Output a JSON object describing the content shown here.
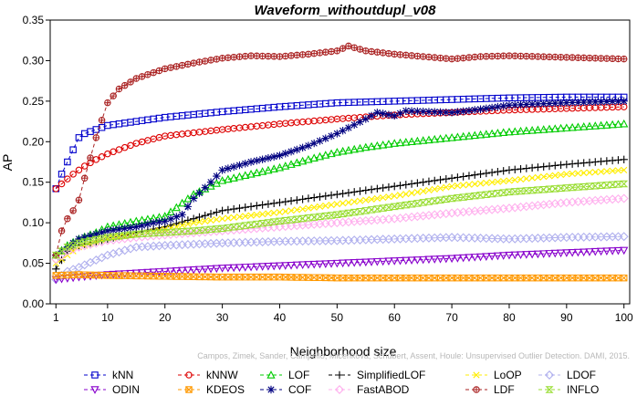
{
  "chart_data": {
    "type": "line",
    "title": "Waveform_withoutdupl_v08",
    "xlabel": "Neighborhood size",
    "ylabel": "AP",
    "xlim": [
      0,
      101
    ],
    "ylim": [
      0,
      0.35
    ],
    "xticks": [
      1,
      10,
      20,
      30,
      40,
      50,
      60,
      70,
      80,
      90,
      100
    ],
    "yticks": [
      0,
      0.05,
      0.1,
      0.15,
      0.2,
      0.25,
      0.3,
      0.35
    ],
    "ytick_labels": [
      "0.00",
      "0.05",
      "0.10",
      "0.15",
      "0.20",
      "0.25",
      "0.30",
      "0.35"
    ],
    "grid": false,
    "legend_position": "bottom",
    "watermark": "Campos, Zimek, Sander, Campello, Micenkova, Schubert, Assent, Houle: Unsupervised Outlier Detection. DAMI, 2015.",
    "series": [
      {
        "name": "kNN",
        "color": "#0000cc",
        "marker": "square",
        "points": [
          [
            1,
            0.142
          ],
          [
            2,
            0.16
          ],
          [
            3,
            0.175
          ],
          [
            4,
            0.19
          ],
          [
            5,
            0.205
          ],
          [
            6,
            0.21
          ],
          [
            8,
            0.215
          ],
          [
            10,
            0.22
          ],
          [
            15,
            0.225
          ],
          [
            20,
            0.23
          ],
          [
            30,
            0.237
          ],
          [
            40,
            0.243
          ],
          [
            50,
            0.248
          ],
          [
            60,
            0.25
          ],
          [
            70,
            0.252
          ],
          [
            80,
            0.254
          ],
          [
            90,
            0.255
          ],
          [
            100,
            0.255
          ]
        ]
      },
      {
        "name": "kNNW",
        "color": "#dd0000",
        "marker": "circle",
        "points": [
          [
            1,
            0.142
          ],
          [
            2,
            0.148
          ],
          [
            4,
            0.16
          ],
          [
            6,
            0.17
          ],
          [
            8,
            0.178
          ],
          [
            10,
            0.185
          ],
          [
            15,
            0.198
          ],
          [
            20,
            0.207
          ],
          [
            30,
            0.215
          ],
          [
            40,
            0.222
          ],
          [
            50,
            0.228
          ],
          [
            60,
            0.233
          ],
          [
            70,
            0.236
          ],
          [
            80,
            0.239
          ],
          [
            90,
            0.241
          ],
          [
            100,
            0.243
          ]
        ]
      },
      {
        "name": "LOF",
        "color": "#00cc00",
        "marker": "triangle-up",
        "points": [
          [
            1,
            0.06
          ],
          [
            3,
            0.072
          ],
          [
            5,
            0.08
          ],
          [
            8,
            0.088
          ],
          [
            10,
            0.095
          ],
          [
            15,
            0.102
          ],
          [
            20,
            0.108
          ],
          [
            25,
            0.135
          ],
          [
            30,
            0.152
          ],
          [
            35,
            0.16
          ],
          [
            40,
            0.168
          ],
          [
            45,
            0.178
          ],
          [
            50,
            0.187
          ],
          [
            55,
            0.193
          ],
          [
            60,
            0.198
          ],
          [
            70,
            0.205
          ],
          [
            80,
            0.212
          ],
          [
            90,
            0.217
          ],
          [
            100,
            0.222
          ]
        ]
      },
      {
        "name": "SimplifiedLOF",
        "color": "#000000",
        "marker": "plus",
        "points": [
          [
            1,
            0.043
          ],
          [
            3,
            0.065
          ],
          [
            5,
            0.072
          ],
          [
            10,
            0.08
          ],
          [
            15,
            0.088
          ],
          [
            20,
            0.095
          ],
          [
            25,
            0.105
          ],
          [
            30,
            0.115
          ],
          [
            35,
            0.12
          ],
          [
            40,
            0.125
          ],
          [
            50,
            0.135
          ],
          [
            60,
            0.145
          ],
          [
            70,
            0.155
          ],
          [
            80,
            0.165
          ],
          [
            90,
            0.172
          ],
          [
            100,
            0.178
          ]
        ]
      },
      {
        "name": "LoOP",
        "color": "#ffee00",
        "marker": "x",
        "points": [
          [
            1,
            0.05
          ],
          [
            3,
            0.06
          ],
          [
            5,
            0.07
          ],
          [
            10,
            0.08
          ],
          [
            15,
            0.085
          ],
          [
            20,
            0.092
          ],
          [
            25,
            0.1
          ],
          [
            30,
            0.105
          ],
          [
            40,
            0.113
          ],
          [
            50,
            0.123
          ],
          [
            60,
            0.133
          ],
          [
            70,
            0.145
          ],
          [
            80,
            0.152
          ],
          [
            90,
            0.16
          ],
          [
            100,
            0.165
          ]
        ]
      },
      {
        "name": "LDOF",
        "color": "#b0b0ee",
        "marker": "diamond",
        "points": [
          [
            1,
            0.03
          ],
          [
            3,
            0.04
          ],
          [
            5,
            0.045
          ],
          [
            10,
            0.06
          ],
          [
            15,
            0.07
          ],
          [
            20,
            0.072
          ],
          [
            30,
            0.075
          ],
          [
            40,
            0.077
          ],
          [
            50,
            0.078
          ],
          [
            60,
            0.08
          ],
          [
            70,
            0.082
          ],
          [
            80,
            0.08
          ],
          [
            90,
            0.082
          ],
          [
            100,
            0.083
          ]
        ]
      },
      {
        "name": "ODIN",
        "color": "#8800cc",
        "marker": "triangle-down",
        "points": [
          [
            1,
            0.03
          ],
          [
            5,
            0.033
          ],
          [
            10,
            0.036
          ],
          [
            20,
            0.04
          ],
          [
            30,
            0.044
          ],
          [
            40,
            0.047
          ],
          [
            50,
            0.05
          ],
          [
            60,
            0.053
          ],
          [
            70,
            0.056
          ],
          [
            80,
            0.06
          ],
          [
            90,
            0.063
          ],
          [
            100,
            0.066
          ]
        ]
      },
      {
        "name": "KDEOS",
        "color": "#ff9900",
        "marker": "square-x",
        "points": [
          [
            1,
            0.035
          ],
          [
            5,
            0.036
          ],
          [
            10,
            0.035
          ],
          [
            20,
            0.034
          ],
          [
            30,
            0.033
          ],
          [
            40,
            0.033
          ],
          [
            50,
            0.032
          ],
          [
            60,
            0.032
          ],
          [
            70,
            0.032
          ],
          [
            80,
            0.032
          ],
          [
            90,
            0.032
          ],
          [
            100,
            0.032
          ]
        ]
      },
      {
        "name": "COF",
        "color": "#000080",
        "marker": "asterisk",
        "points": [
          [
            1,
            0.06
          ],
          [
            3,
            0.07
          ],
          [
            5,
            0.08
          ],
          [
            10,
            0.09
          ],
          [
            15,
            0.095
          ],
          [
            18,
            0.1
          ],
          [
            20,
            0.102
          ],
          [
            23,
            0.11
          ],
          [
            25,
            0.13
          ],
          [
            28,
            0.15
          ],
          [
            30,
            0.165
          ],
          [
            35,
            0.175
          ],
          [
            40,
            0.183
          ],
          [
            45,
            0.195
          ],
          [
            50,
            0.21
          ],
          [
            55,
            0.228
          ],
          [
            57,
            0.236
          ],
          [
            60,
            0.232
          ],
          [
            62,
            0.238
          ],
          [
            70,
            0.236
          ],
          [
            75,
            0.24
          ],
          [
            80,
            0.245
          ],
          [
            90,
            0.248
          ],
          [
            100,
            0.25
          ]
        ]
      },
      {
        "name": "FastABOD",
        "color": "#ffb0ee",
        "marker": "diamond",
        "points": [
          [
            1,
            0.055
          ],
          [
            3,
            0.065
          ],
          [
            5,
            0.07
          ],
          [
            10,
            0.078
          ],
          [
            15,
            0.082
          ],
          [
            20,
            0.085
          ],
          [
            30,
            0.09
          ],
          [
            40,
            0.095
          ],
          [
            50,
            0.1
          ],
          [
            60,
            0.105
          ],
          [
            70,
            0.112
          ],
          [
            80,
            0.118
          ],
          [
            90,
            0.125
          ],
          [
            100,
            0.13
          ]
        ]
      },
      {
        "name": "LDF",
        "color": "#aa2222",
        "marker": "circle-cross",
        "points": [
          [
            1,
            0.06
          ],
          [
            2,
            0.09
          ],
          [
            3,
            0.105
          ],
          [
            4,
            0.115
          ],
          [
            5,
            0.128
          ],
          [
            6,
            0.155
          ],
          [
            8,
            0.205
          ],
          [
            10,
            0.248
          ],
          [
            12,
            0.265
          ],
          [
            15,
            0.278
          ],
          [
            20,
            0.29
          ],
          [
            25,
            0.297
          ],
          [
            30,
            0.303
          ],
          [
            35,
            0.306
          ],
          [
            40,
            0.305
          ],
          [
            45,
            0.308
          ],
          [
            50,
            0.312
          ],
          [
            52,
            0.318
          ],
          [
            55,
            0.312
          ],
          [
            60,
            0.308
          ],
          [
            65,
            0.305
          ],
          [
            70,
            0.302
          ],
          [
            75,
            0.305
          ],
          [
            80,
            0.306
          ],
          [
            90,
            0.304
          ],
          [
            100,
            0.302
          ]
        ]
      },
      {
        "name": "INFLO",
        "color": "#99dd33",
        "marker": "hourglass",
        "points": [
          [
            1,
            0.06
          ],
          [
            3,
            0.07
          ],
          [
            5,
            0.075
          ],
          [
            10,
            0.082
          ],
          [
            15,
            0.086
          ],
          [
            20,
            0.088
          ],
          [
            25,
            0.09
          ],
          [
            30,
            0.093
          ],
          [
            40,
            0.102
          ],
          [
            50,
            0.11
          ],
          [
            60,
            0.12
          ],
          [
            70,
            0.13
          ],
          [
            80,
            0.138
          ],
          [
            90,
            0.143
          ],
          [
            100,
            0.148
          ]
        ]
      }
    ]
  }
}
